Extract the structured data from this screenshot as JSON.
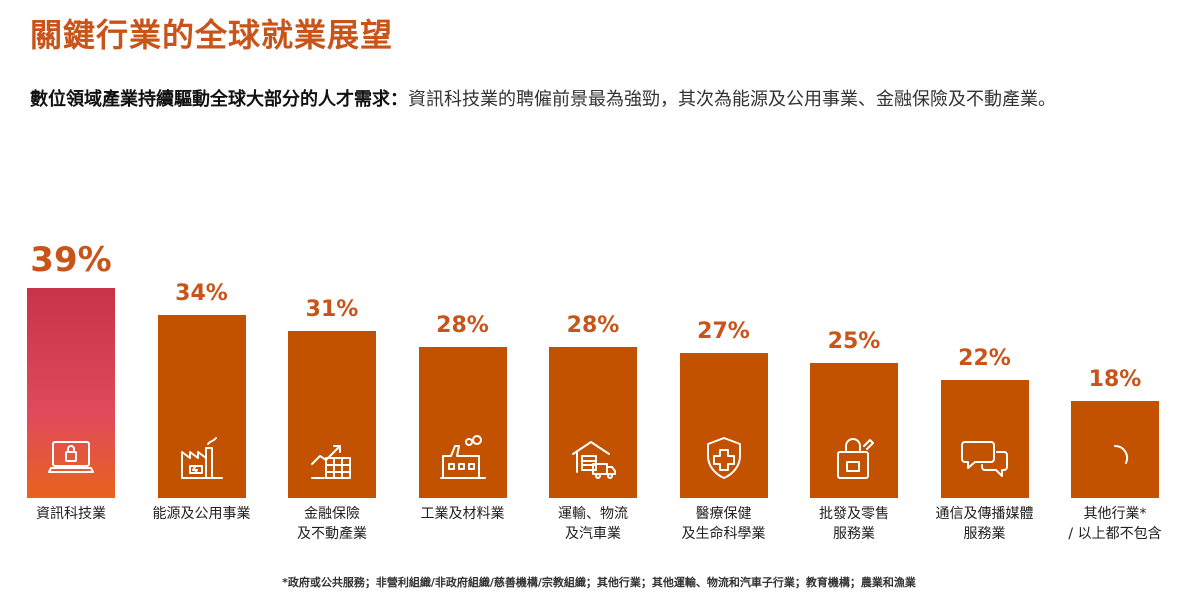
{
  "header": {
    "title": "關鍵行業的全球就業展望",
    "subtitle_bold": "數位領域產業持續驅動全球大部分的人才需求：",
    "subtitle_rest": "資訊科技業的聘僱前景最為強勁，其次為能源及公用事業、金融保險及不動產業。"
  },
  "chart_data": {
    "type": "bar",
    "categories": [
      [
        "資訊科技業"
      ],
      [
        "能源及公用事業"
      ],
      [
        "金融保險",
        "及不動產業"
      ],
      [
        "工業及材料業"
      ],
      [
        "運輸、物流",
        "及汽車業"
      ],
      [
        "醫療保健",
        "及生命科學業"
      ],
      [
        "批發及零售",
        "服務業"
      ],
      [
        "通信及傳播媒體",
        "服務業"
      ],
      [
        "其他行業*",
        "/ 以上都不包含"
      ]
    ],
    "values": [
      39,
      34,
      31,
      28,
      28,
      27,
      25,
      22,
      18
    ],
    "labels": [
      "39%",
      "34%",
      "31%",
      "28%",
      "28%",
      "27%",
      "25%",
      "22%",
      "18%"
    ],
    "icons": [
      "laptop-lock-icon",
      "factory-battery-icon",
      "finance-growth-icon",
      "factory-icon",
      "warehouse-truck-icon",
      "medical-shield-icon",
      "shopping-bag-icon",
      "chat-bubbles-icon",
      "loading-icon"
    ],
    "colors": {
      "bar": "#c25100",
      "highlight_top": "#c8334a",
      "highlight_bottom": "#e9621e",
      "label": "#c8541a"
    }
  },
  "footnote": "*政府或公共服務；非營利組織/非政府組織/慈善機構/宗教組織；其他行業；其他運輸、物流和汽車子行業；教育機構；農業和漁業"
}
